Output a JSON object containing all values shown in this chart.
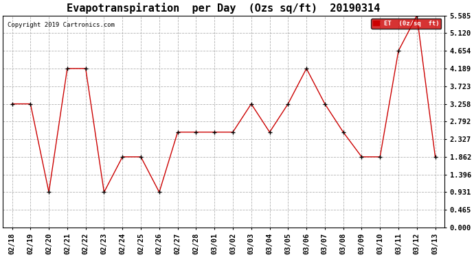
{
  "title": "Evapotranspiration  per Day  (Ozs sq/ft)  20190314",
  "copyright": "Copyright 2019 Cartronics.com",
  "legend_label": "ET  (0z/sq  ft)",
  "x_labels": [
    "02/18",
    "02/19",
    "02/20",
    "02/21",
    "02/22",
    "02/23",
    "02/24",
    "02/25",
    "02/26",
    "02/27",
    "02/28",
    "03/01",
    "03/02",
    "03/03",
    "03/04",
    "03/05",
    "03/06",
    "03/07",
    "03/08",
    "03/09",
    "03/10",
    "03/11",
    "03/12",
    "03/13"
  ],
  "y_values": [
    3.258,
    3.258,
    0.931,
    4.189,
    4.189,
    0.931,
    1.862,
    1.862,
    0.931,
    2.513,
    2.513,
    2.513,
    2.513,
    3.258,
    2.513,
    3.258,
    4.189,
    3.258,
    2.513,
    1.862,
    1.862,
    4.654,
    5.585,
    1.862
  ],
  "yticks": [
    0.0,
    0.465,
    0.931,
    1.396,
    1.862,
    2.327,
    2.792,
    3.258,
    3.723,
    4.189,
    4.654,
    5.12,
    5.585
  ],
  "ylim": [
    0.0,
    5.585
  ],
  "line_color": "#cc0000",
  "marker_color": "#000000",
  "bg_color": "#ffffff",
  "grid_color": "#aaaaaa",
  "legend_bg": "#cc0000",
  "legend_text_color": "#ffffff",
  "title_fontsize": 11,
  "tick_fontsize": 7.5,
  "copyright_fontsize": 6.5
}
